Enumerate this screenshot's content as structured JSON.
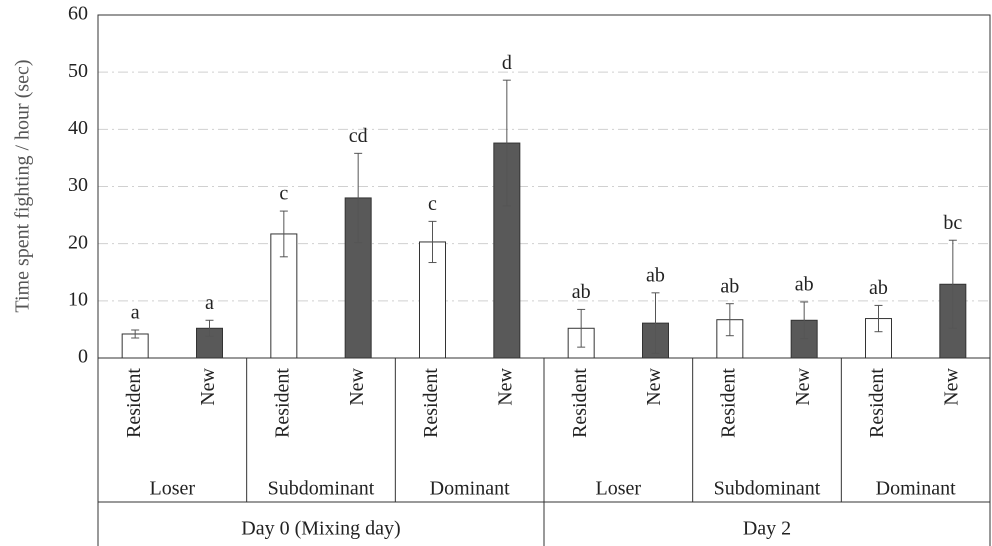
{
  "chart_data": {
    "type": "bar",
    "ylabel": "Time spent fighting / hour (sec)",
    "categories": [
      "Resident",
      "New",
      "Resident",
      "New",
      "Resident",
      "New",
      "Resident",
      "New",
      "Resident",
      "New",
      "Resident",
      "New"
    ],
    "groups": [
      "Loser",
      "Subdominant",
      "Dominant",
      "Loser",
      "Subdominant",
      "Dominant"
    ],
    "days": [
      "Day 0 (Mixing day)",
      "Day 2"
    ],
    "values": [
      4.2,
      5.2,
      21.7,
      28,
      20.3,
      37.6,
      5.2,
      6.1,
      6.7,
      6.6,
      6.9,
      12.9
    ],
    "errors": [
      0.7,
      1.4,
      4.0,
      7.8,
      3.6,
      11.0,
      3.3,
      5.3,
      2.8,
      3.2,
      2.3,
      7.7
    ],
    "annotations": [
      "a",
      "a",
      "c",
      "cd",
      "c",
      "d",
      "ab",
      "ab",
      "ab",
      "ab",
      "ab",
      "bc"
    ],
    "colors": [
      "#ffffff",
      "#595959",
      "#ffffff",
      "#595959",
      "#ffffff",
      "#595959",
      "#ffffff",
      "#595959",
      "#ffffff",
      "#595959",
      "#ffffff",
      "#595959"
    ],
    "ylim": [
      0,
      60
    ],
    "yticks": [
      0,
      10,
      20,
      30,
      40,
      50,
      60
    ],
    "grid": true
  }
}
